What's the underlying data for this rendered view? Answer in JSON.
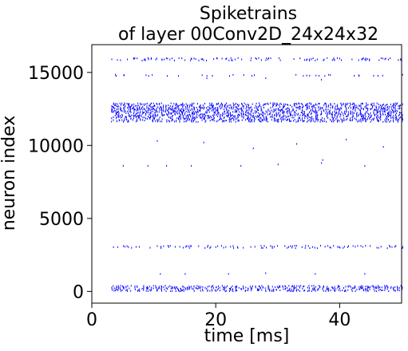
{
  "chart_data": {
    "type": "scatter",
    "title_line1": "Spiketrains",
    "title_line2": "of layer 00Conv2D_24x24x32",
    "xlabel": "time [ms]",
    "ylabel": "neuron index",
    "xlim": [
      0,
      50
    ],
    "ylim": [
      -800,
      16900
    ],
    "xticks": [
      0,
      20,
      40
    ],
    "yticks": [
      0,
      5000,
      10000,
      15000
    ],
    "grid": false,
    "marker_color": "#0000ff",
    "time_start": 3,
    "time_end": 50,
    "bands": [
      {
        "y_min": 0,
        "y_max": 400,
        "density": 0.85
      },
      {
        "y_min": 2950,
        "y_max": 3150,
        "density": 0.45
      },
      {
        "y_min": 11600,
        "y_max": 12900,
        "density": 0.9
      },
      {
        "y_min": 14750,
        "y_max": 14850,
        "density": 0.25
      },
      {
        "y_min": 15800,
        "y_max": 16000,
        "density": 0.45
      }
    ],
    "sparse_spikes": [
      {
        "t": 9,
        "n": 8600
      },
      {
        "t": 10.5,
        "n": 10300
      },
      {
        "t": 12,
        "n": 8600
      },
      {
        "t": 16,
        "n": 8600
      },
      {
        "t": 18,
        "n": 10200
      },
      {
        "t": 26,
        "n": 9800
      },
      {
        "t": 30,
        "n": 8700
      },
      {
        "t": 33,
        "n": 10100
      },
      {
        "t": 37,
        "n": 8800
      },
      {
        "t": 37.2,
        "n": 9000
      },
      {
        "t": 41,
        "n": 10400
      },
      {
        "t": 44,
        "n": 8600
      },
      {
        "t": 47,
        "n": 9900
      },
      {
        "t": 11,
        "n": 1200
      },
      {
        "t": 15,
        "n": 1200
      },
      {
        "t": 22,
        "n": 1200
      },
      {
        "t": 28,
        "n": 1250
      },
      {
        "t": 36,
        "n": 1200
      },
      {
        "t": 44,
        "n": 1200
      },
      {
        "t": 18.5,
        "n": 14600
      },
      {
        "t": 28,
        "n": 14600
      },
      {
        "t": 37,
        "n": 14500
      },
      {
        "t": 24,
        "n": 8600
      },
      {
        "t": 5,
        "n": 8600
      }
    ]
  }
}
